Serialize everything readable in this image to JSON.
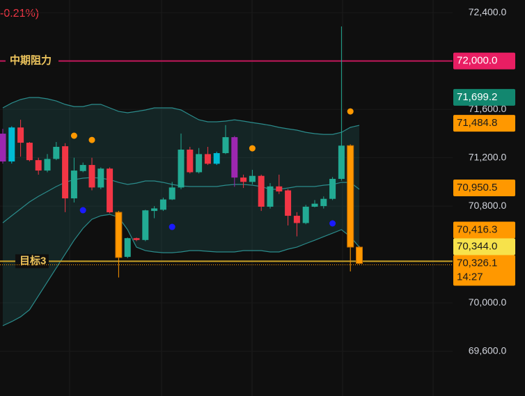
{
  "chart_data": {
    "type": "candlestick",
    "header_text": "-0.21%)",
    "header_color": "#f23645",
    "ylim": [
      69230,
      72504
    ],
    "yticks": [
      {
        "value": 69600,
        "label": "69,600.0"
      },
      {
        "value": 70000,
        "label": "70,000.0"
      },
      {
        "value": 70800,
        "label": "70,800.0"
      },
      {
        "value": 71200,
        "label": "71,200.0"
      },
      {
        "value": 71600,
        "label": "71,600.0"
      },
      {
        "value": 72400,
        "label": "72,400.0"
      }
    ],
    "series": {
      "open": [
        71169,
        71169,
        71450,
        71324,
        71180,
        71094,
        71190,
        71295,
        70864,
        71090,
        71140,
        70954,
        71110,
        70749,
        70380,
        70535,
        70520,
        70760,
        70770,
        70855,
        70954,
        71267,
        71080,
        71230,
        71150,
        71238,
        71370,
        71036,
        71000,
        71050,
        70795,
        70963,
        70930,
        70720,
        70660,
        70795,
        70800,
        70860,
        71025,
        71300,
        70461
      ],
      "high": [
        71439,
        71460,
        71514,
        71330,
        71200,
        71230,
        71330,
        71320,
        71200,
        71160,
        71200,
        71120,
        71120,
        70760,
        70540,
        70540,
        70770,
        70800,
        70870,
        71000,
        71400,
        71290,
        71280,
        71290,
        71250,
        71470,
        71380,
        71060,
        71100,
        71060,
        70990,
        71060,
        70940,
        70750,
        70810,
        70850,
        70880,
        71040,
        72285,
        71310,
        70470
      ],
      "low": [
        71152,
        71152,
        71209,
        71170,
        71060,
        71080,
        71180,
        70750,
        70830,
        71080,
        70930,
        70940,
        70740,
        70210,
        70370,
        70510,
        70510,
        70700,
        70760,
        70850,
        70940,
        71070,
        71070,
        71140,
        71140,
        71230,
        70960,
        70950,
        70980,
        70760,
        70780,
        70900,
        70640,
        70550,
        70650,
        70790,
        70780,
        70850,
        71010,
        70260,
        70320
      ],
      "close": [
        71399,
        71450,
        71324,
        71180,
        71094,
        71190,
        71290,
        70864,
        71094,
        71140,
        70954,
        71110,
        70749,
        70375,
        70535,
        70520,
        70765,
        70781,
        70855,
        70954,
        71267,
        71080,
        71230,
        71150,
        71238,
        71370,
        71036,
        71000,
        71050,
        70795,
        70963,
        70921,
        70720,
        70660,
        70795,
        70820,
        70860,
        71025,
        71300,
        70461,
        70326
      ],
      "colors": [
        "#9c27b0",
        "#00bcd4",
        "#f23645",
        "#f23645",
        "#f23645",
        "#22ab94",
        "#22ab94",
        "#f23645",
        "#22ab94",
        "#22ab94",
        "#f23645",
        "#22ab94",
        "#f23645",
        "#ff9800",
        "#22ab94",
        "#f23645",
        "#22ab94",
        "#22ab94",
        "#22ab94",
        "#22ab94",
        "#22ab94",
        "#f23645",
        "#22ab94",
        "#f23645",
        "#00bcd4",
        "#22ab94",
        "#9c27b0",
        "#f23645",
        "#22ab94",
        "#f23645",
        "#22ab94",
        "#f23645",
        "#f23645",
        "#f23645",
        "#22ab94",
        "#22ab94",
        "#22ab94",
        "#22ab94",
        "#22ab94",
        "#ff9800",
        "#ff9800"
      ]
    },
    "bands": {
      "color": "#2b8c8c",
      "upper": [
        71612,
        71652,
        71681,
        71698,
        71698,
        71687,
        71669,
        71641,
        71623,
        71623,
        71641,
        71641,
        71612,
        71583,
        71572,
        71583,
        71595,
        71612,
        71612,
        71612,
        71595,
        71554,
        71514,
        71497,
        71497,
        71503,
        71514,
        71503,
        71491,
        71480,
        71468,
        71451,
        71439,
        71428,
        71410,
        71399,
        71393,
        71393,
        71410,
        71451,
        71468
      ],
      "middle": [
        70662,
        70720,
        70777,
        70835,
        70881,
        70921,
        70962,
        70996,
        71019,
        71031,
        71036,
        71031,
        71019,
        70996,
        70979,
        70990,
        71008,
        71008,
        70996,
        70979,
        70967,
        70962,
        70962,
        70962,
        70962,
        70973,
        70979,
        70979,
        70973,
        70962,
        70939,
        70939,
        70950,
        70962,
        70962,
        70962,
        70973,
        70979,
        70996,
        70996,
        70939
      ],
      "lower": [
        69811,
        69845,
        69885,
        69943,
        70058,
        70173,
        70288,
        70403,
        70518,
        70616,
        70691,
        70720,
        70731,
        70708,
        70605,
        70461,
        70432,
        70421,
        70415,
        70415,
        70421,
        70432,
        70432,
        70426,
        70421,
        70421,
        70421,
        70432,
        70432,
        70432,
        70421,
        70421,
        70444,
        70461,
        70490,
        70518,
        70547,
        70576,
        70605,
        70547,
        70461
      ]
    },
    "signals": [
      {
        "color": "#ff9800",
        "x": [
          8,
          10,
          28,
          39
        ],
        "values": [
          71382,
          71347,
          71278,
          71583
        ]
      },
      {
        "color": "#1a1aff",
        "x": [
          9,
          19,
          37
        ],
        "values": [
          70766,
          70628,
          70657
        ]
      }
    ],
    "levels": [
      {
        "label": "中期阻力",
        "value": 72000,
        "color": "#c2185b",
        "text_color": "#f0c75e"
      },
      {
        "label": "目标3",
        "value": 70344,
        "color": "#c9a227",
        "text_color": "#f0c75e"
      }
    ],
    "price_badges": [
      {
        "value": 72000,
        "label": "72,000.0",
        "color": "#e91e63",
        "text_color": "#ffffff"
      },
      {
        "value": 71699.2,
        "label": "71,699.2",
        "color": "#12876f",
        "text_color": "#ffffff"
      },
      {
        "value": 71484.8,
        "label": "71,484.8",
        "color": "#ff9800",
        "text_color": "#1a1a1a"
      },
      {
        "value": 70950.5,
        "label": "70,950.5",
        "color": "#ff9800",
        "text_color": "#1a1a1a"
      },
      {
        "value": 70416.3,
        "label": "70,416.3",
        "color": "#ff9800",
        "text_color": "#1a1a1a"
      },
      {
        "value": 70344,
        "label": "70,344.0",
        "color": "#f7e24b",
        "text_color": "#1a1a1a"
      },
      {
        "value": 70326.1,
        "label": "70,326.1",
        "time": "14:27",
        "color": "#ff9800",
        "text_color": "#1a1a1a"
      }
    ]
  }
}
